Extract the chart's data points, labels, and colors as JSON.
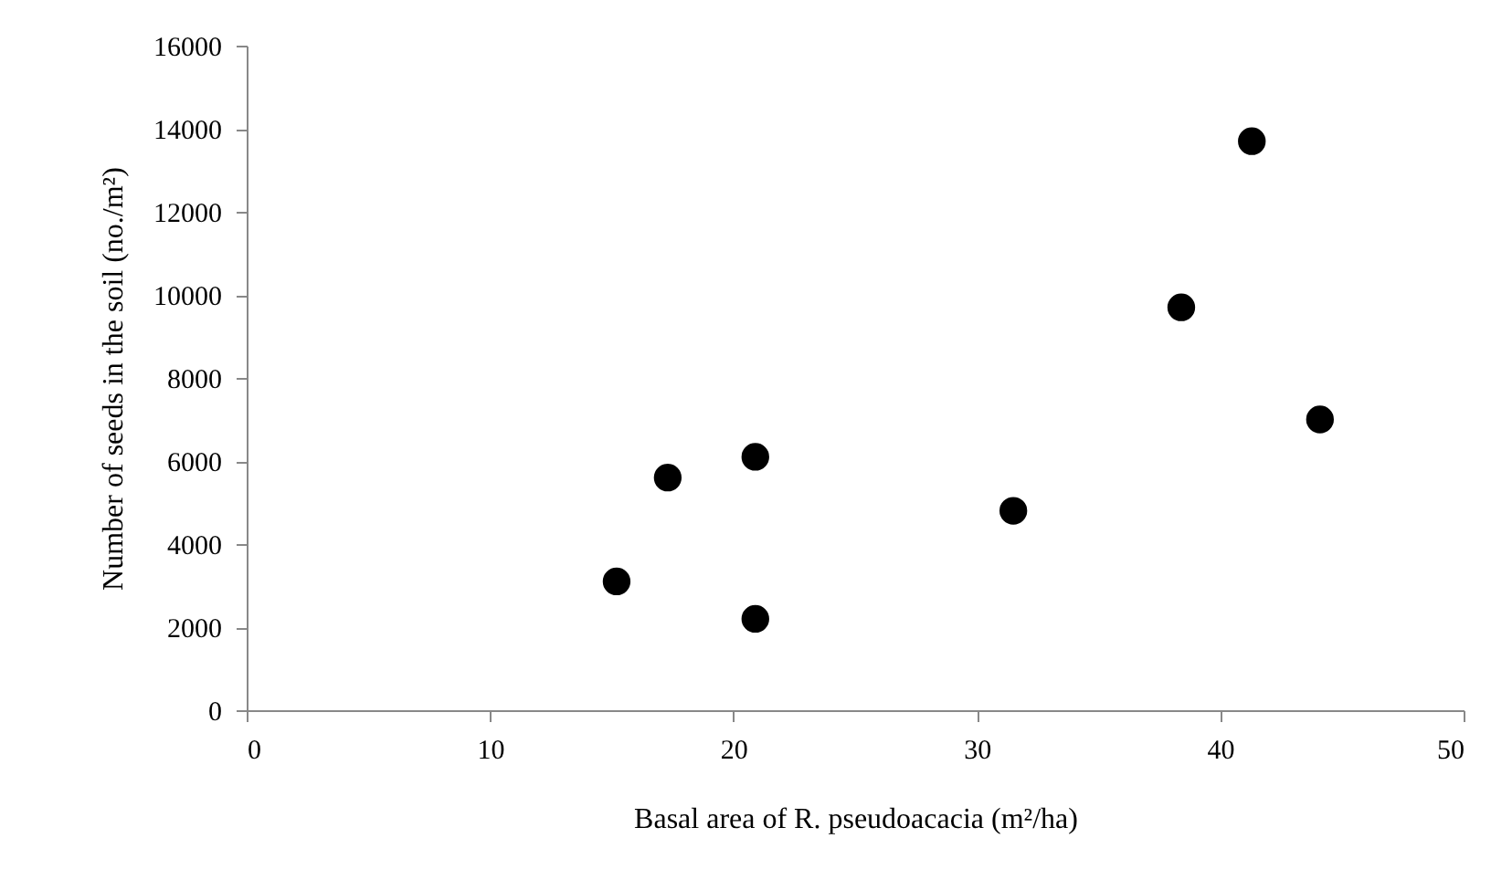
{
  "chart_data": {
    "type": "scatter",
    "xlabel": "Basal area of R. pseudoacacia (m²/ha)",
    "ylabel": "Number of seeds in the soil (no./m²)",
    "x": [
      15.2,
      17.3,
      20.9,
      20.9,
      31.5,
      38.4,
      41.3,
      44.1
    ],
    "values": [
      3100,
      5600,
      6100,
      2200,
      4800,
      9700,
      13700,
      7000
    ],
    "color": "#000000",
    "marker": "circle",
    "xlim": [
      0,
      50
    ],
    "xticks": [
      0,
      10,
      20,
      30,
      40,
      50
    ],
    "ylim": [
      0,
      16000
    ],
    "yticks": [
      0,
      2000,
      4000,
      6000,
      8000,
      10000,
      12000,
      14000,
      16000
    ],
    "grid": false
  }
}
